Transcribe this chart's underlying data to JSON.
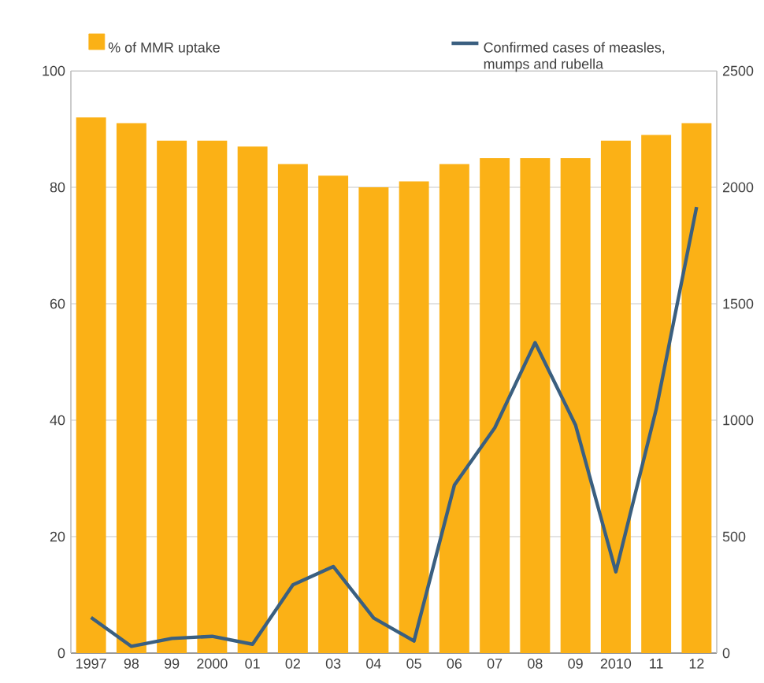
{
  "chart_data": {
    "type": "bar",
    "categories": [
      "1997",
      "98",
      "99",
      "2000",
      "01",
      "02",
      "03",
      "04",
      "05",
      "06",
      "07",
      "08",
      "09",
      "2010",
      "11",
      "12"
    ],
    "series": [
      {
        "name": "% of MMR uptake",
        "axis": "y",
        "color": "#fbb116",
        "values": [
          92,
          91,
          88,
          88,
          87,
          84,
          82,
          80,
          81,
          84,
          85,
          85,
          85,
          88,
          89,
          91
        ]
      },
      {
        "name": "Confirmed cases of measles, mumps and rubella",
        "type": "line",
        "axis": "y2",
        "color": "#3a5f80",
        "values": [
          153,
          29,
          63,
          72,
          38,
          293,
          372,
          151,
          52,
          721,
          967,
          1333,
          980,
          349,
          1047,
          1915
        ]
      }
    ],
    "ylim": [
      0,
      100
    ],
    "yticks": [
      0,
      20,
      40,
      60,
      80,
      100
    ],
    "y2lim": [
      0,
      2500
    ],
    "y2ticks": [
      0,
      500,
      1000,
      1500,
      2000,
      2500
    ],
    "grid": "y",
    "legend": "top"
  }
}
